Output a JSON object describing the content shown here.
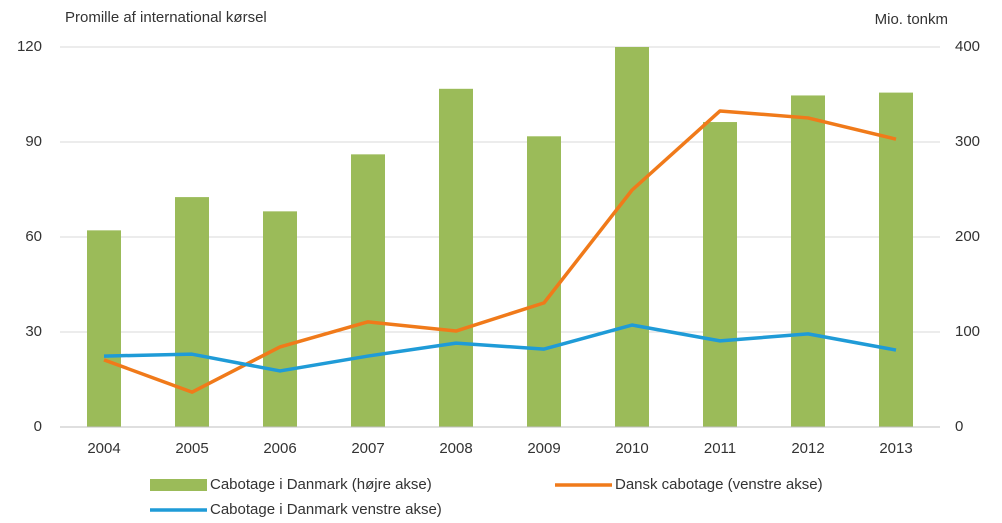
{
  "chart_data": {
    "type": "bar",
    "y_label": "Promille af international kørsel",
    "y2_label": "Mio. tonkm",
    "categories": [
      "2004",
      "2005",
      "2006",
      "2007",
      "2008",
      "2009",
      "2010",
      "2011",
      "2012",
      "2013"
    ],
    "series": [
      {
        "name": "Cabotage i Danmark (højre akse)",
        "type": "bar",
        "axis": "y2",
        "color": "#9bbb59",
        "values": [
          207,
          242,
          227,
          287,
          356,
          306,
          400,
          321,
          349,
          352
        ]
      },
      {
        "name": "Dansk cabotage (venstre akse)",
        "type": "line",
        "color": "#f07a1a",
        "values": [
          21.2,
          11,
          25.3,
          33.2,
          30.3,
          39.2,
          74.8,
          99.8,
          97.6,
          90.9
        ]
      },
      {
        "name": "Cabotage i Danmark venstre akse)",
        "type": "line",
        "color": "#1f9bd7",
        "values": [
          22.4,
          23,
          17.7,
          22.4,
          26.5,
          24.6,
          32.2,
          27.2,
          29.4,
          24.3
        ]
      }
    ],
    "ylim": [
      0,
      120
    ],
    "yticks": [
      0,
      30,
      60,
      90,
      120
    ],
    "y2lim": [
      0,
      400
    ],
    "y2ticks": [
      0,
      100,
      200,
      300,
      400
    ],
    "grid": true
  }
}
